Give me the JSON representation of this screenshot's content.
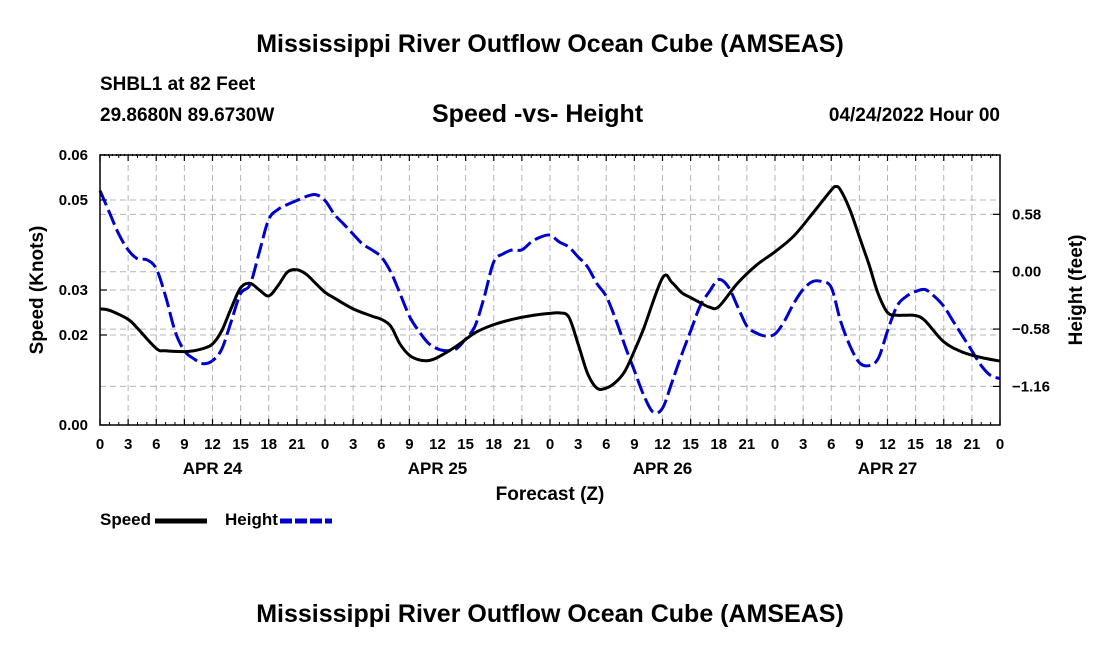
{
  "page": {
    "main_title": "Mississippi River Outflow Ocean Cube (AMSEAS)",
    "footer_title": "Mississippi River Outflow Ocean Cube (AMSEAS)",
    "station": "SHBL1 at 82 Feet",
    "coords": "29.8680N  89.6730W",
    "subtitle": "Speed -vs- Height",
    "datetime": "04/24/2022 Hour 00"
  },
  "chart_data": {
    "type": "line",
    "title": "Speed -vs- Height",
    "xlabel": "Forecast (Z)",
    "ylabel": "Speed (Knots)",
    "y2label": "Height (feet)",
    "x_range_hours": [
      0,
      96
    ],
    "x_ticks": [
      {
        "hour": 0,
        "label": "0"
      },
      {
        "hour": 3,
        "label": "3"
      },
      {
        "hour": 6,
        "label": "6"
      },
      {
        "hour": 9,
        "label": "9"
      },
      {
        "hour": 12,
        "label": "12"
      },
      {
        "hour": 15,
        "label": "15"
      },
      {
        "hour": 18,
        "label": "18"
      },
      {
        "hour": 21,
        "label": "21"
      },
      {
        "hour": 24,
        "label": "0"
      },
      {
        "hour": 27,
        "label": "3"
      },
      {
        "hour": 30,
        "label": "6"
      },
      {
        "hour": 33,
        "label": "9"
      },
      {
        "hour": 36,
        "label": "12"
      },
      {
        "hour": 39,
        "label": "15"
      },
      {
        "hour": 42,
        "label": "18"
      },
      {
        "hour": 45,
        "label": "21"
      },
      {
        "hour": 48,
        "label": "0"
      },
      {
        "hour": 51,
        "label": "3"
      },
      {
        "hour": 54,
        "label": "6"
      },
      {
        "hour": 57,
        "label": "9"
      },
      {
        "hour": 60,
        "label": "12"
      },
      {
        "hour": 63,
        "label": "15"
      },
      {
        "hour": 66,
        "label": "18"
      },
      {
        "hour": 69,
        "label": "21"
      },
      {
        "hour": 72,
        "label": "0"
      },
      {
        "hour": 75,
        "label": "3"
      },
      {
        "hour": 78,
        "label": "6"
      },
      {
        "hour": 81,
        "label": "9"
      },
      {
        "hour": 84,
        "label": "12"
      },
      {
        "hour": 87,
        "label": "15"
      },
      {
        "hour": 90,
        "label": "18"
      },
      {
        "hour": 93,
        "label": "21"
      },
      {
        "hour": 96,
        "label": "0"
      }
    ],
    "day_labels": [
      {
        "hour": 12,
        "label": "APR 24"
      },
      {
        "hour": 36,
        "label": "APR 25"
      },
      {
        "hour": 60,
        "label": "APR 26"
      },
      {
        "hour": 84,
        "label": "APR 27"
      }
    ],
    "y_left": {
      "range": [
        0,
        0.06
      ],
      "ticks": [
        0.0,
        0.02,
        0.03,
        0.05,
        0.06
      ],
      "tick_labels": [
        "0.00",
        "0.02",
        "0.03",
        "0.05",
        "0.06"
      ]
    },
    "y_right": {
      "range": [
        -1.55,
        1.18
      ],
      "ticks": [
        0.58,
        0.0,
        -0.58,
        -1.16
      ],
      "tick_labels": [
        "0.58",
        "0.00",
        "−0.58",
        "−1.16"
      ]
    },
    "legend": [
      {
        "name": "Speed",
        "color": "#000000",
        "style": "solid"
      },
      {
        "name": "Height",
        "color": "#0000cc",
        "style": "dashed"
      }
    ],
    "series": [
      {
        "name": "Speed",
        "axis": "left",
        "color": "#000000",
        "x": [
          0,
          1,
          3,
          4,
          6,
          7,
          9,
          10,
          11,
          12,
          13,
          14,
          15,
          16,
          17,
          18,
          19,
          20,
          21,
          22,
          23,
          24,
          25,
          27,
          29,
          30,
          31,
          32,
          33,
          34,
          35,
          36,
          38,
          40,
          42,
          44,
          46,
          48,
          49,
          50,
          51,
          52,
          53,
          54,
          55,
          56,
          57,
          58,
          60,
          61,
          62,
          63,
          64,
          65,
          66,
          68,
          70,
          72,
          74,
          76,
          78,
          78.5,
          79,
          80,
          81,
          82,
          83,
          84,
          85,
          86,
          87,
          88,
          90,
          92,
          94,
          96
        ],
        "values": [
          0.0258,
          0.0255,
          0.0235,
          0.0215,
          0.017,
          0.0165,
          0.0163,
          0.0165,
          0.017,
          0.018,
          0.021,
          0.026,
          0.0305,
          0.0315,
          0.03,
          0.0287,
          0.031,
          0.034,
          0.0345,
          0.0335,
          0.0315,
          0.0295,
          0.0282,
          0.0258,
          0.0242,
          0.0235,
          0.022,
          0.018,
          0.0155,
          0.0145,
          0.0143,
          0.015,
          0.0175,
          0.0205,
          0.0223,
          0.0235,
          0.0243,
          0.0248,
          0.0249,
          0.024,
          0.018,
          0.0115,
          0.0082,
          0.0082,
          0.0095,
          0.012,
          0.0165,
          0.0215,
          0.0327,
          0.0317,
          0.0295,
          0.0283,
          0.0272,
          0.0262,
          0.0263,
          0.0315,
          0.0355,
          0.0385,
          0.042,
          0.047,
          0.0522,
          0.053,
          0.0522,
          0.0478,
          0.0418,
          0.0358,
          0.0292,
          0.025,
          0.0244,
          0.0244,
          0.0243,
          0.0232,
          0.0185,
          0.0162,
          0.015,
          0.0142
        ]
      },
      {
        "name": "Height",
        "axis": "right",
        "color": "#0000cc",
        "x": [
          0,
          1,
          2,
          3,
          4,
          5,
          6,
          7,
          8,
          9,
          10,
          11,
          12,
          13,
          14,
          15,
          16,
          17,
          18,
          19,
          20,
          21,
          22,
          23,
          24,
          25,
          26,
          27,
          28,
          29,
          30,
          31,
          32,
          33,
          34,
          35,
          36,
          37,
          38,
          39,
          40,
          41,
          42,
          43,
          44,
          45,
          46,
          47,
          48,
          49,
          50,
          51,
          52,
          53,
          54,
          55,
          56,
          57,
          58,
          59,
          60,
          61,
          62,
          63,
          64,
          65,
          66,
          67,
          68,
          69,
          70,
          71,
          72,
          73,
          74,
          75,
          76,
          77,
          78,
          79,
          80,
          81,
          82,
          83,
          84,
          85,
          86,
          87,
          88,
          89,
          90,
          91,
          92,
          93,
          94,
          95,
          96
        ],
        "values": [
          0.82,
          0.6,
          0.38,
          0.22,
          0.13,
          0.12,
          0.03,
          -0.25,
          -0.6,
          -0.8,
          -0.88,
          -0.93,
          -0.9,
          -0.78,
          -0.5,
          -0.22,
          -0.13,
          0.2,
          0.53,
          0.63,
          0.68,
          0.72,
          0.76,
          0.78,
          0.72,
          0.58,
          0.48,
          0.38,
          0.28,
          0.22,
          0.15,
          0.0,
          -0.22,
          -0.45,
          -0.6,
          -0.72,
          -0.78,
          -0.8,
          -0.78,
          -0.68,
          -0.55,
          -0.25,
          0.1,
          0.18,
          0.22,
          0.22,
          0.3,
          0.35,
          0.37,
          0.3,
          0.25,
          0.15,
          0.05,
          -0.12,
          -0.25,
          -0.48,
          -0.75,
          -1.0,
          -1.25,
          -1.42,
          -1.38,
          -1.12,
          -0.85,
          -0.6,
          -0.35,
          -0.2,
          -0.08,
          -0.15,
          -0.35,
          -0.55,
          -0.62,
          -0.65,
          -0.63,
          -0.5,
          -0.32,
          -0.18,
          -0.1,
          -0.1,
          -0.16,
          -0.5,
          -0.75,
          -0.92,
          -0.95,
          -0.88,
          -0.6,
          -0.35,
          -0.25,
          -0.2,
          -0.18,
          -0.25,
          -0.35,
          -0.5,
          -0.65,
          -0.8,
          -0.95,
          -1.05,
          -1.08
        ]
      }
    ]
  }
}
